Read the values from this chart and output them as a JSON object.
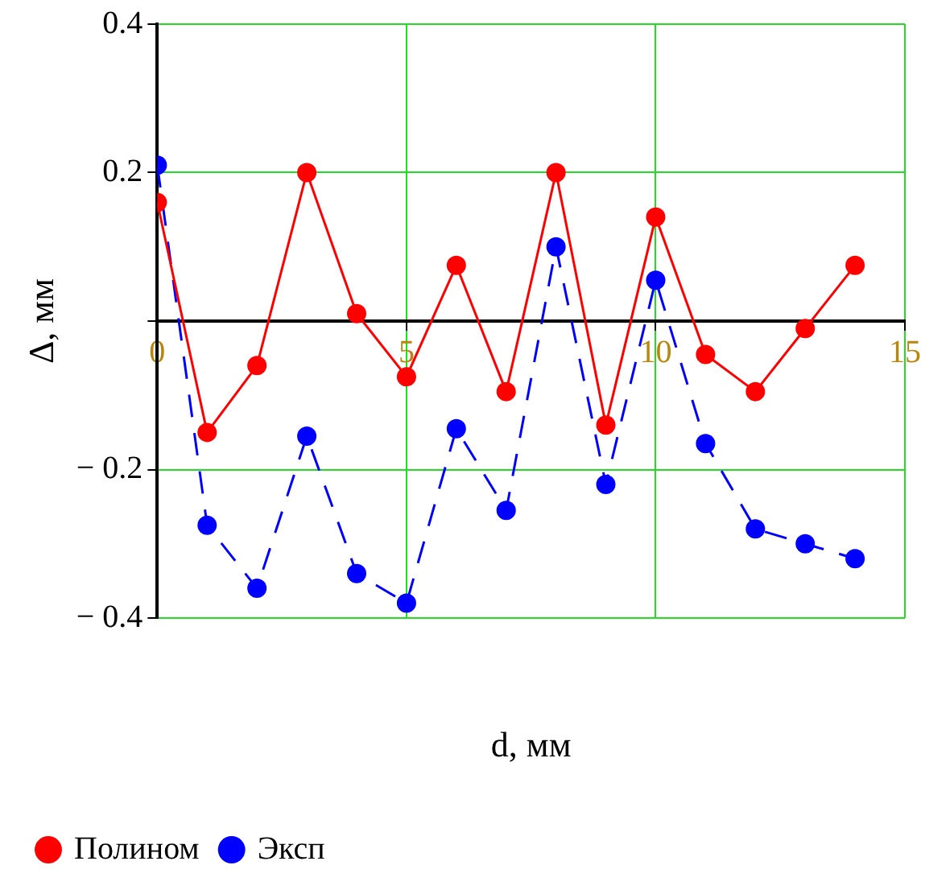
{
  "chart_data": {
    "type": "line",
    "xlabel": "d, мм",
    "ylabel": "Δ, мм",
    "x": [
      0,
      1,
      2,
      3,
      4,
      5,
      6,
      7,
      8,
      9,
      10,
      11,
      12,
      13,
      14
    ],
    "series": [
      {
        "name": "Полином",
        "color": "#ff0000",
        "line_style": "solid",
        "values": [
          0.16,
          -0.15,
          -0.06,
          0.2,
          0.01,
          -0.075,
          0.075,
          -0.095,
          0.2,
          -0.14,
          0.14,
          -0.045,
          -0.095,
          -0.01,
          0.075
        ]
      },
      {
        "name": "Эксп",
        "color": "#0000ff",
        "line_style": "dashed",
        "values": [
          0.21,
          -0.275,
          -0.36,
          -0.155,
          -0.34,
          -0.38,
          -0.145,
          -0.255,
          0.1,
          -0.22,
          0.055,
          -0.165,
          -0.28,
          -0.3,
          -0.32
        ]
      }
    ],
    "xlim": [
      0,
      15
    ],
    "xticks": [
      0,
      5,
      10,
      15
    ],
    "ylim": [
      -0.4,
      0.4
    ],
    "yticks": [
      {
        "value": -0.4,
        "label": "− 0.4"
      },
      {
        "value": -0.2,
        "label": "− 0.2"
      },
      {
        "value": 0,
        "label": null
      },
      0.2,
      0.4
    ],
    "grid": true,
    "legend": "bottom",
    "marker": "circle"
  }
}
